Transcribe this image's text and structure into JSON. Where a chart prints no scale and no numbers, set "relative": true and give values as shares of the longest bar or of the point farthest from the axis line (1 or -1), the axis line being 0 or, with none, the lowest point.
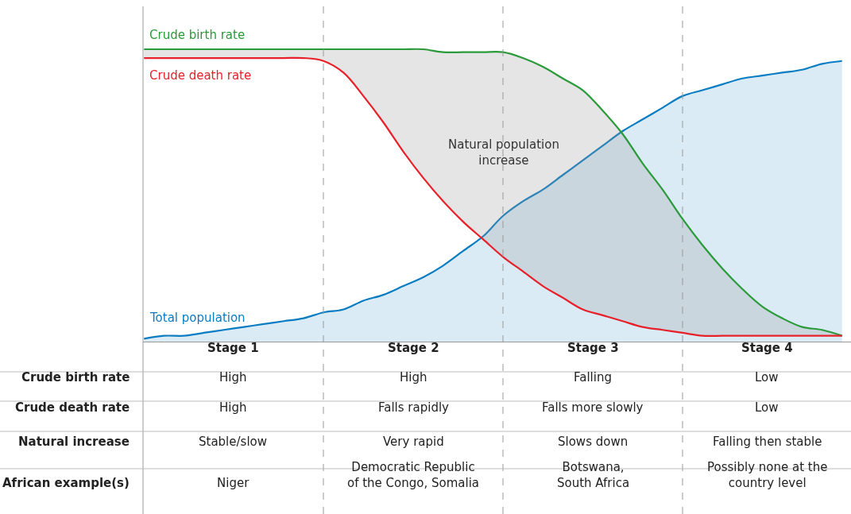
{
  "chart_data": {
    "type": "line",
    "relative": true,
    "legend": false,
    "grid": "x",
    "line_style": "solid",
    "marker": "none",
    "categories": [
      null,
      null,
      null,
      null,
      null,
      null,
      null,
      null,
      null,
      null,
      null,
      null,
      null,
      null,
      null,
      null,
      null,
      null,
      null,
      null,
      null,
      null,
      null,
      null,
      null,
      null,
      null,
      null,
      null,
      null,
      null,
      null,
      null,
      null,
      null,
      null
    ],
    "series": [
      {
        "name": "Total population",
        "type": "area",
        "color": "#0a7cc1",
        "values": [
          0.01,
          0.02,
          0.02,
          0.03,
          0.04,
          0.05,
          0.06,
          0.07,
          0.08,
          0.1,
          0.11,
          0.14,
          0.16,
          0.19,
          0.22,
          0.26,
          0.31,
          0.36,
          0.43,
          0.48,
          0.52,
          0.57,
          0.62,
          0.67,
          0.72,
          0.76,
          0.8,
          0.84,
          0.86,
          0.88,
          0.9,
          0.91,
          0.92,
          0.93,
          0.95,
          0.96
        ]
      },
      {
        "name": "Crude birth rate",
        "color": "#2a9a3a",
        "values": [
          1.0,
          1.0,
          1.0,
          1.0,
          1.0,
          1.0,
          1.0,
          1.0,
          1.0,
          1.0,
          1.0,
          1.0,
          1.0,
          1.0,
          1.0,
          0.99,
          0.99,
          0.99,
          0.99,
          0.97,
          0.94,
          0.9,
          0.86,
          0.79,
          0.71,
          0.61,
          0.52,
          0.42,
          0.33,
          0.25,
          0.18,
          0.12,
          0.08,
          0.05,
          0.04,
          0.02
        ],
        "lower": [
          0.97,
          0.97,
          0.97,
          0.97,
          0.97,
          0.97,
          0.97,
          0.97,
          0.97,
          0.96,
          0.92,
          0.84,
          0.75,
          0.65,
          0.56,
          0.48,
          0.41,
          0.35,
          0.29,
          0.24,
          0.19,
          0.15,
          0.11,
          0.09,
          0.07,
          0.05,
          0.04,
          0.03,
          0.02,
          0.02,
          0.02,
          0.02,
          0.02,
          0.02,
          0.02,
          0.02
        ],
        "upper": [
          1.0,
          1.0,
          1.0,
          1.0,
          1.0,
          1.0,
          1.0,
          1.0,
          1.0,
          1.0,
          1.0,
          1.0,
          1.0,
          1.0,
          1.0,
          0.99,
          0.99,
          0.99,
          0.99,
          0.97,
          0.94,
          0.9,
          0.86,
          0.79,
          0.71,
          0.61,
          0.52,
          0.42,
          0.33,
          0.25,
          0.18,
          0.12,
          0.08,
          0.05,
          0.04,
          0.02
        ]
      },
      {
        "name": "Crude death rate",
        "color": "#e8202a",
        "values": [
          0.97,
          0.97,
          0.97,
          0.97,
          0.97,
          0.97,
          0.97,
          0.97,
          0.97,
          0.96,
          0.92,
          0.84,
          0.75,
          0.65,
          0.56,
          0.48,
          0.41,
          0.35,
          0.29,
          0.24,
          0.19,
          0.15,
          0.11,
          0.09,
          0.07,
          0.05,
          0.04,
          0.03,
          0.02,
          0.02,
          0.02,
          0.02,
          0.02,
          0.02,
          0.02,
          0.02
        ]
      }
    ],
    "annotations": [
      "Natural population\nincrease",
      "Stage 1",
      "Stage 2",
      "Stage 3",
      "Stage 4",
      "Crude birth rate",
      "High",
      "High",
      "Falling",
      "Low",
      "Crude death rate",
      "High",
      "Falls rapidly",
      "Falls more slowly",
      "Low",
      "Natural increase",
      "Stable/slow",
      "Very rapid",
      "Slows down",
      "Falling then stable",
      "African example(s)",
      "Niger",
      "Democratic Republic\nof the Congo, Somalia",
      "Botswana,\nSouth Africa",
      "Possibly none at the\ncountry level"
    ]
  }
}
